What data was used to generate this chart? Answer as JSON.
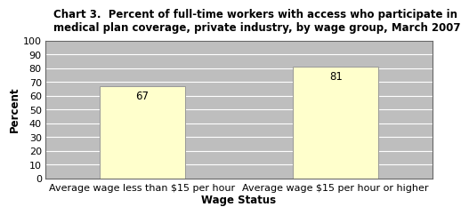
{
  "title": "Chart 3.  Percent of full-time workers with access who participate in\nmedical plan coverage, private industry, by wage group, March 2007",
  "categories": [
    "Average wage less than $15 per hour",
    "Average wage $15 per hour or higher"
  ],
  "values": [
    67,
    81
  ],
  "bar_color": "#FFFFCC",
  "bar_edgecolor": "#999999",
  "plot_bg_color": "#BEBEBE",
  "outer_bg_color": "#FFFFFF",
  "xlabel": "Wage Status",
  "ylabel": "Percent",
  "ylim": [
    0,
    100
  ],
  "yticks": [
    0,
    10,
    20,
    30,
    40,
    50,
    60,
    70,
    80,
    90,
    100
  ],
  "title_fontsize": 8.5,
  "axis_label_fontsize": 8.5,
  "tick_fontsize": 8,
  "value_label_fontsize": 8.5,
  "x_positions": [
    0.25,
    0.75
  ],
  "bar_width": 0.22,
  "xlim": [
    0.0,
    1.0
  ]
}
